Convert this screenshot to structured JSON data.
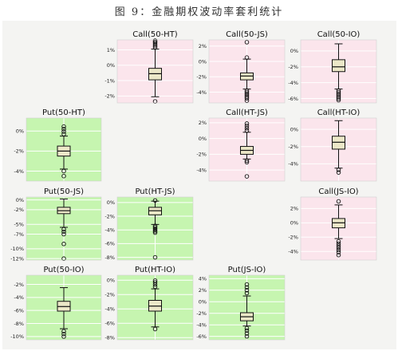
{
  "figure_title": "图 9：金融期权波动率套利统计",
  "colors": {
    "call_bg": "#fbe5ec",
    "put_bg": "#c6f5b0",
    "box_fill": "#ece8c8",
    "box_line": "#111111",
    "grid": "#ffffff"
  },
  "chart_data": [
    {
      "type": "box",
      "title": "Call(50-HT)",
      "yticks": [
        "1%",
        "0%",
        "-1%",
        "-2%"
      ],
      "ylim": [
        -2.45,
        1.65
      ],
      "stats": {
        "whisker_low": -2.05,
        "q1": -0.95,
        "median": -0.55,
        "q3": -0.2,
        "whisker_high": 1.05
      },
      "outliers": [
        1.15,
        1.25,
        1.35,
        1.45,
        1.52,
        1.6,
        -2.35
      ]
    },
    {
      "type": "box",
      "title": "Call(50-JS)",
      "yticks": [
        "2%",
        "0%",
        "-2%",
        "-4%"
      ],
      "ylim": [
        -5.4,
        2.8
      ],
      "stats": {
        "whisker_low": -3.6,
        "q1": -2.4,
        "median": -1.9,
        "q3": -1.5,
        "whisker_high": 0.3
      },
      "outliers": [
        2.5,
        0.5,
        -3.8,
        -4.0,
        -4.2,
        -4.4,
        -4.6,
        -4.8,
        -5.1
      ]
    },
    {
      "type": "box",
      "title": "Call(50-IO)",
      "yticks": [
        "0%",
        "-2%",
        "-4%",
        "-6%"
      ],
      "ylim": [
        -6.55,
        1.4
      ],
      "stats": {
        "whisker_low": -4.8,
        "q1": -2.6,
        "median": -2.0,
        "q3": -1.1,
        "whisker_high": 0.9
      },
      "outliers": [
        -5.0,
        -5.2,
        -5.4,
        -5.6,
        -5.8,
        -6.0,
        -6.2
      ]
    },
    {
      "type": "box",
      "title": "Put(50-HT)",
      "yticks": [
        "0%",
        "-2%",
        "-4%"
      ],
      "ylim": [
        -5.0,
        1.3
      ],
      "stats": {
        "whisker_low": -3.8,
        "q1": -2.5,
        "median": -2.0,
        "q3": -1.5,
        "whisker_high": -0.5
      },
      "outliers": [
        -0.3,
        -0.05,
        0.2,
        0.45,
        -4.0,
        -4.5
      ]
    },
    {
      "type": "box",
      "title": "Call(HT-JS)",
      "yticks": [
        "2%",
        "0%",
        "-2%",
        "-4%"
      ],
      "ylim": [
        -5.4,
        2.6
      ],
      "stats": {
        "whisker_low": -2.6,
        "q1": -2.0,
        "median": -1.5,
        "q3": -1.0,
        "whisker_high": 0.8
      },
      "outliers": [
        1.0,
        1.3,
        1.6,
        1.9,
        -2.8,
        -3.0,
        -4.8
      ]
    },
    {
      "type": "box",
      "title": "Call(HT-IO)",
      "yticks": [
        "0%",
        "-2%",
        "-4%"
      ],
      "ylim": [
        -6.0,
        1.3
      ],
      "stats": {
        "whisker_low": -4.5,
        "q1": -2.3,
        "median": -1.5,
        "q3": -0.8,
        "whisker_high": 1.0
      },
      "outliers": [
        -4.7,
        -5.0
      ]
    },
    {
      "type": "box",
      "title": "Put(50-JS)",
      "yticks": [
        "0%",
        "-2%",
        "-5%",
        "-7%",
        "-10%",
        "-12%"
      ],
      "ylim": [
        -12.3,
        0.6
      ],
      "stats": {
        "whisker_low": -5.6,
        "q1": -2.8,
        "median": -2.2,
        "q3": -1.5,
        "whisker_high": 0.2
      },
      "outliers": [
        -6.0,
        -6.5,
        -7.0,
        -9.0,
        -12.0
      ]
    },
    {
      "type": "box",
      "title": "Put(HT-JS)",
      "yticks": [
        "0%",
        "-2%",
        "-4%",
        "-6%",
        "-8%"
      ],
      "ylim": [
        -8.4,
        0.8
      ],
      "stats": {
        "whisker_low": -3.2,
        "q1": -1.8,
        "median": -1.2,
        "q3": -0.7,
        "whisker_high": 0.2
      },
      "outliers": [
        0.3,
        -3.4,
        -3.6,
        -3.8,
        -4.0,
        -4.2,
        -4.4,
        -8.0
      ]
    },
    {
      "type": "box",
      "title": "Call(JS-IO)",
      "yticks": [
        "2%",
        "0%",
        "-2%",
        "-4%"
      ],
      "ylim": [
        -5.2,
        3.6
      ],
      "stats": {
        "whisker_low": -2.2,
        "q1": -0.7,
        "median": 0.0,
        "q3": 0.6,
        "whisker_high": 2.5
      },
      "outliers": [
        3.0,
        -2.6,
        -2.9,
        -3.2,
        -3.5,
        -3.8,
        -4.1,
        -4.5
      ]
    },
    {
      "type": "box",
      "title": "Put(50-IO)",
      "yticks": [
        "-2%",
        "-4%",
        "-6%",
        "-8%",
        "-10%"
      ],
      "ylim": [
        -10.5,
        -0.6
      ],
      "stats": {
        "whisker_low": -8.8,
        "q1": -6.1,
        "median": -5.4,
        "q3": -4.6,
        "whisker_high": -2.5
      },
      "outliers": [
        -9.2,
        -9.6,
        -10.0
      ]
    },
    {
      "type": "box",
      "title": "Put(HT-IO)",
      "yticks": [
        "0%",
        "-2%",
        "-4%",
        "-6%",
        "-8%"
      ],
      "ylim": [
        -8.3,
        0.7
      ],
      "stats": {
        "whisker_low": -6.5,
        "q1": -4.3,
        "median": -3.6,
        "q3": -2.8,
        "whisker_high": -1.2
      },
      "outliers": [
        -0.9,
        -0.6,
        -0.3,
        -0.05,
        -6.8
      ]
    },
    {
      "type": "box",
      "title": "Put(JS-IO)",
      "yticks": [
        "4%",
        "2%",
        "0%",
        "-2%",
        "-4%",
        "-6%"
      ],
      "ylim": [
        -6.6,
        4.6
      ],
      "stats": {
        "whisker_low": -4.2,
        "q1": -3.3,
        "median": -2.6,
        "q3": -1.9,
        "whisker_high": 1.0
      },
      "outliers": [
        1.5,
        2.0,
        2.5,
        3.0,
        -4.6,
        -5.0,
        -5.5,
        -6.0
      ]
    }
  ]
}
